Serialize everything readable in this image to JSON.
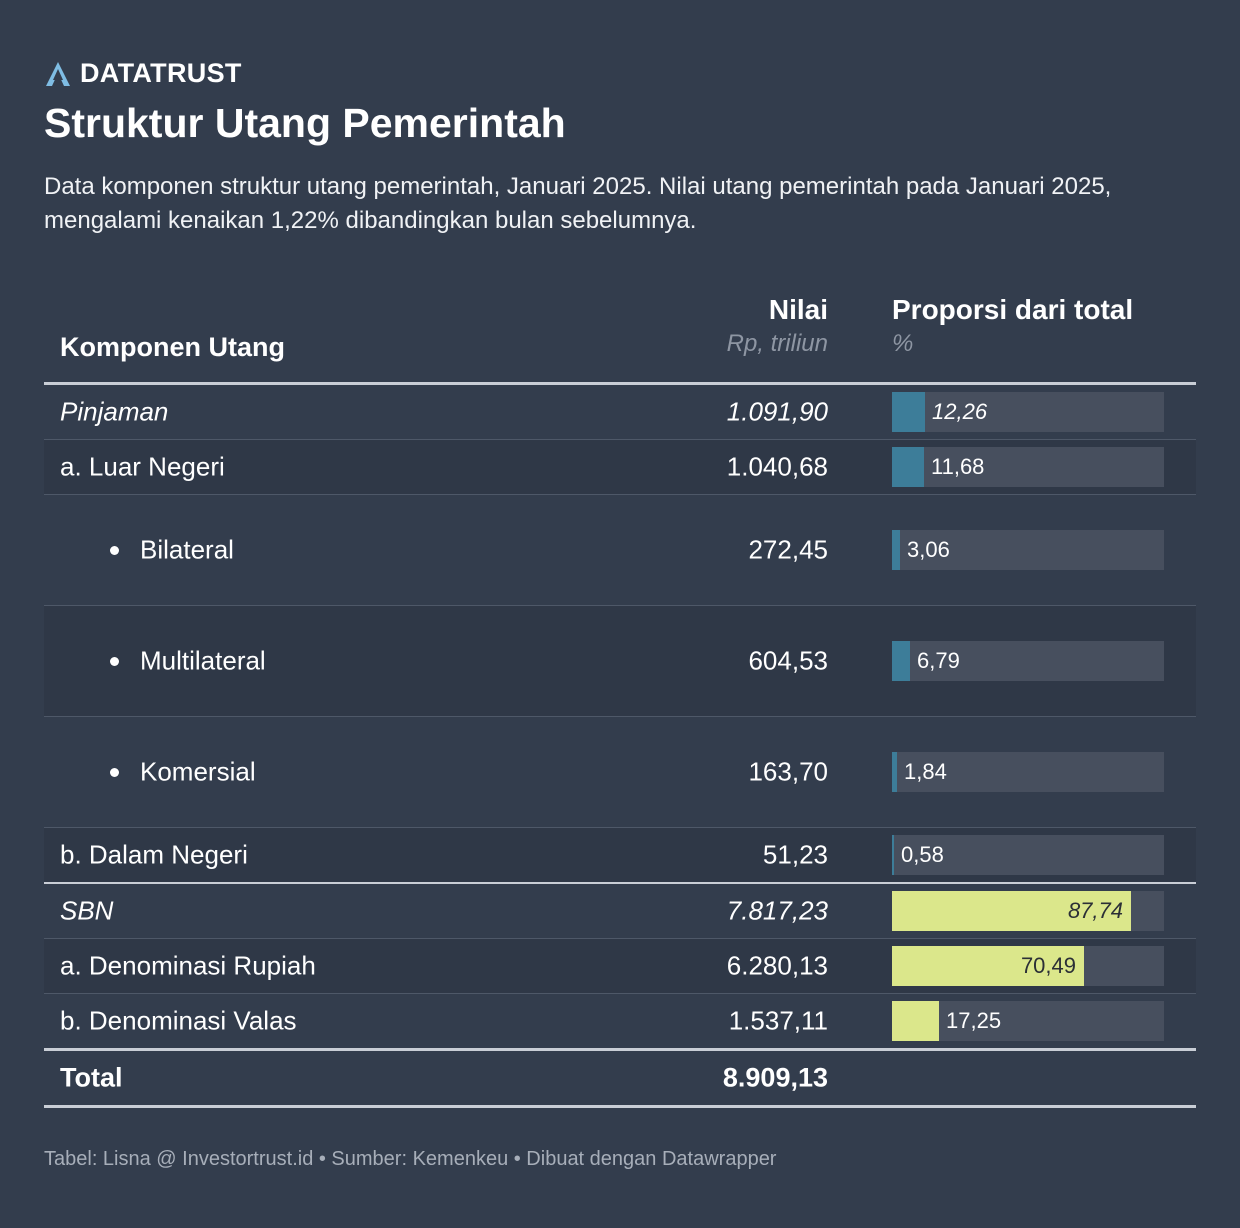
{
  "brand": {
    "name": "DATATRUST",
    "icon": "datatrust-logo-icon",
    "icon_color": "#7fbde4"
  },
  "title": "Struktur Utang Pemerintah",
  "subtitle": "Data komponen struktur utang pemerintah, Januari 2025. Nilai utang pemerintah pada Januari 2025, mengalami kenaikan 1,22% dibandingkan bulan sebelumnya.",
  "table": {
    "col_component": "Komponen Utang",
    "col_value": "Nilai",
    "col_value_unit": "Rp, triliun",
    "col_share": "Proporsi dari total",
    "col_share_unit": "%"
  },
  "colors": {
    "pinjaman_bar": "#3d7d99",
    "sbn_bar": "#dbe78b",
    "bar_track": "#474f5e",
    "background": "#333d4d"
  },
  "chart_data": {
    "type": "table",
    "max_share": 100,
    "rows": [
      {
        "name": "Pinjaman",
        "value": "1.091,90",
        "share": 12.26,
        "share_label": "12,26",
        "group": "pinjaman",
        "italic": true,
        "indent": false,
        "bullet": false
      },
      {
        "name": "a. Luar Negeri",
        "value": "1.040,68",
        "share": 11.68,
        "share_label": "11,68",
        "group": "pinjaman",
        "italic": false,
        "indent": false,
        "bullet": false
      },
      {
        "name": "Bilateral",
        "value": "272,45",
        "share": 3.06,
        "share_label": "3,06",
        "group": "pinjaman",
        "italic": false,
        "indent": true,
        "bullet": true
      },
      {
        "name": "Multilateral",
        "value": "604,53",
        "share": 6.79,
        "share_label": "6,79",
        "group": "pinjaman",
        "italic": false,
        "indent": true,
        "bullet": true
      },
      {
        "name": "Komersial",
        "value": "163,70",
        "share": 1.84,
        "share_label": "1,84",
        "group": "pinjaman",
        "italic": false,
        "indent": true,
        "bullet": true
      },
      {
        "name": "b. Dalam Negeri",
        "value": "51,23",
        "share": 0.58,
        "share_label": "0,58",
        "group": "pinjaman",
        "italic": false,
        "indent": false,
        "bullet": false
      },
      {
        "name": "SBN",
        "value": "7.817,23",
        "share": 87.74,
        "share_label": "87,74",
        "group": "sbn",
        "italic": true,
        "indent": false,
        "bullet": false
      },
      {
        "name": "a. Denominasi Rupiah",
        "value": "6.280,13",
        "share": 70.49,
        "share_label": "70,49",
        "group": "sbn",
        "italic": false,
        "indent": false,
        "bullet": false
      },
      {
        "name": "b. Denominasi Valas",
        "value": "1.537,11",
        "share": 17.25,
        "share_label": "17,25",
        "group": "sbn",
        "italic": false,
        "indent": false,
        "bullet": false
      }
    ],
    "total": {
      "name": "Total",
      "value": "8.909,13"
    }
  },
  "footer": "Tabel: Lisna @ Investortrust.id • Sumber: Kemenkeu • Dibuat dengan Datawrapper"
}
